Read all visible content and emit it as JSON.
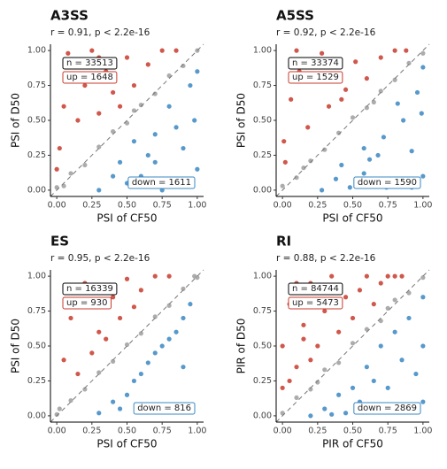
{
  "chart_data": [
    {
      "type": "scatter",
      "title": "A3SS",
      "subtitle": "r = 0.91, p < 2.2e-16",
      "xlabel": "PSI of CF50",
      "ylabel": "PSI of D50",
      "xlim": [
        -0.045,
        1.045
      ],
      "ylim": [
        -0.045,
        1.045
      ],
      "xticks": [
        {
          "value": 0,
          "label": "0.00"
        },
        {
          "value": 0.25,
          "label": "0.25"
        },
        {
          "value": 0.5,
          "label": "0.50"
        },
        {
          "value": 0.75,
          "label": "0.75"
        },
        {
          "value": 1,
          "label": "1.00"
        }
      ],
      "yticks": [
        {
          "value": 0,
          "label": "0.00"
        },
        {
          "value": 0.25,
          "label": "0.25"
        },
        {
          "value": 0.5,
          "label": "0.50"
        },
        {
          "value": 0.75,
          "label": "0.75"
        },
        {
          "value": 1,
          "label": "1.00"
        }
      ],
      "annotations": {
        "n": "n = 33513",
        "up": "up = 1648",
        "down": "down = 1611"
      },
      "series": [
        {
          "color": "#c8392b",
          "x": [
            0.02,
            0.05,
            0.1,
            0.15,
            0.2,
            0.25,
            0.3,
            0.35,
            0.4,
            0.5,
            0.55,
            0.65,
            0.75,
            0.85,
            0,
            0.08,
            0.3,
            0.45
          ],
          "y": [
            0.3,
            0.6,
            0.9,
            0.5,
            0.75,
            1,
            0.55,
            0.85,
            0.7,
            0.95,
            0.75,
            0.9,
            1,
            1,
            0.15,
            0.98,
            0.95,
            0.6
          ]
        },
        {
          "color": "#3a87c2",
          "x": [
            0.3,
            0.45,
            0.6,
            0.7,
            0.8,
            0.9,
            0.95,
            1,
            0.5,
            0.65,
            0.85,
            0.75,
            0.98,
            0.4,
            0.9,
            1,
            0.55,
            0.7
          ],
          "y": [
            0,
            0.2,
            0.1,
            0.4,
            0.6,
            0.3,
            0.75,
            0.85,
            0.05,
            0.25,
            0.45,
            0,
            0.5,
            0.1,
            0.05,
            0.15,
            0.35,
            0.2
          ]
        },
        {
          "color": "#9e9e9e",
          "x": [
            0,
            0.1,
            0.2,
            0.3,
            0.4,
            0.5,
            0.6,
            0.7,
            0.8,
            0.9,
            1,
            0.05,
            0.55
          ],
          "y": [
            0.02,
            0.12,
            0.18,
            0.31,
            0.42,
            0.48,
            0.61,
            0.69,
            0.82,
            0.89,
            1,
            0.03,
            0.57
          ]
        }
      ]
    },
    {
      "type": "scatter",
      "title": "A5SS",
      "subtitle": "r = 0.92, p < 2.2e-16",
      "xlabel": "PSI of CF50",
      "ylabel": "PSI of D50",
      "xlim": [
        -0.045,
        1.045
      ],
      "ylim": [
        -0.045,
        1.045
      ],
      "xticks": [
        {
          "value": 0,
          "label": "0.00"
        },
        {
          "value": 0.25,
          "label": "0.25"
        },
        {
          "value": 0.5,
          "label": "0.50"
        },
        {
          "value": 0.75,
          "label": "0.75"
        },
        {
          "value": 1,
          "label": "1.00"
        }
      ],
      "yticks": [
        {
          "value": 0,
          "label": "0.00"
        },
        {
          "value": 0.25,
          "label": "0.25"
        },
        {
          "value": 0.5,
          "label": "0.50"
        },
        {
          "value": 0.75,
          "label": "0.75"
        },
        {
          "value": 1,
          "label": "1.00"
        }
      ],
      "annotations": {
        "n": "n = 33374",
        "up": "up = 1529",
        "down": "down = 1590"
      },
      "series": [
        {
          "color": "#c8392b",
          "x": [
            0.01,
            0.06,
            0.12,
            0.18,
            0.22,
            0.28,
            0.33,
            0.38,
            0.45,
            0.52,
            0.6,
            0.7,
            0.8,
            0.88,
            0.02,
            0.1,
            0.25,
            0.42
          ],
          "y": [
            0.35,
            0.65,
            0.85,
            0.45,
            0.8,
            0.98,
            0.6,
            0.9,
            0.72,
            0.92,
            0.8,
            0.95,
            1,
            1,
            0.2,
            1,
            0.9,
            0.65
          ]
        },
        {
          "color": "#3a87c2",
          "x": [
            0.28,
            0.42,
            0.58,
            0.72,
            0.82,
            0.92,
            0.96,
            1,
            0.48,
            0.62,
            0.86,
            0.74,
            0.99,
            0.38,
            0.92,
            1,
            0.58,
            0.68
          ],
          "y": [
            0,
            0.18,
            0.12,
            0.38,
            0.62,
            0.28,
            0.7,
            0.88,
            0.02,
            0.22,
            0.5,
            0.02,
            0.55,
            0.08,
            0.02,
            0.1,
            0.3,
            0.25
          ]
        },
        {
          "color": "#9e9e9e",
          "x": [
            0,
            0.1,
            0.2,
            0.3,
            0.4,
            0.5,
            0.6,
            0.7,
            0.8,
            0.9,
            1,
            0.15,
            0.65
          ],
          "y": [
            0.03,
            0.09,
            0.21,
            0.29,
            0.41,
            0.52,
            0.59,
            0.71,
            0.79,
            0.91,
            0.98,
            0.16,
            0.63
          ]
        }
      ]
    },
    {
      "type": "scatter",
      "title": "ES",
      "subtitle": "r = 0.95, p < 2.2e-16",
      "xlabel": "PSI of CF50",
      "ylabel": "PSI of D50",
      "xlim": [
        -0.045,
        1.045
      ],
      "ylim": [
        -0.045,
        1.045
      ],
      "xticks": [
        {
          "value": 0,
          "label": "0.00"
        },
        {
          "value": 0.25,
          "label": "0.25"
        },
        {
          "value": 0.5,
          "label": "0.50"
        },
        {
          "value": 0.75,
          "label": "0.75"
        },
        {
          "value": 1,
          "label": "1.00"
        }
      ],
      "yticks": [
        {
          "value": 0,
          "label": "0.00"
        },
        {
          "value": 0.25,
          "label": "0.25"
        },
        {
          "value": 0.5,
          "label": "0.50"
        },
        {
          "value": 0.75,
          "label": "0.75"
        },
        {
          "value": 1,
          "label": "1.00"
        }
      ],
      "annotations": {
        "n": "n = 16339",
        "up": "up = 930",
        "down": "down = 816"
      },
      "series": [
        {
          "color": "#c8392b",
          "x": [
            0.05,
            0.1,
            0.2,
            0.3,
            0.4,
            0.5,
            0.6,
            0.7,
            0.8,
            0.35,
            0.25,
            0.15,
            0.45,
            0.55
          ],
          "y": [
            0.4,
            0.7,
            0.95,
            0.6,
            0.85,
            0.98,
            0.9,
            1,
            1,
            0.55,
            0.45,
            0.3,
            0.7,
            0.78
          ]
        },
        {
          "color": "#3a87c2",
          "x": [
            0.3,
            0.4,
            0.5,
            0.6,
            0.7,
            0.8,
            0.9,
            0.95,
            0.55,
            0.65,
            0.85,
            0.75,
            0.45,
            0.9
          ],
          "y": [
            0.02,
            0.1,
            0.15,
            0.3,
            0.45,
            0.55,
            0.7,
            0.8,
            0.25,
            0.38,
            0.6,
            0.5,
            0.05,
            0.35
          ]
        },
        {
          "color": "#9e9e9e",
          "x": [
            0,
            0.1,
            0.2,
            0.3,
            0.4,
            0.5,
            0.6,
            0.7,
            0.8,
            0.9,
            1,
            0.02,
            0.98
          ],
          "y": [
            0.01,
            0.11,
            0.19,
            0.31,
            0.39,
            0.51,
            0.59,
            0.71,
            0.79,
            0.91,
            0.99,
            0.05,
            1
          ]
        }
      ]
    },
    {
      "type": "scatter",
      "title": "RI",
      "subtitle": "r = 0.88, p < 2.2e-16",
      "xlabel": "PIR of CF50",
      "ylabel": "PIR of D50",
      "xlim": [
        -0.045,
        1.045
      ],
      "ylim": [
        -0.045,
        1.045
      ],
      "xticks": [
        {
          "value": 0,
          "label": "0.00"
        },
        {
          "value": 0.25,
          "label": "0.25"
        },
        {
          "value": 0.5,
          "label": "0.50"
        },
        {
          "value": 0.75,
          "label": "0.75"
        },
        {
          "value": 1,
          "label": "1.00"
        }
      ],
      "yticks": [
        {
          "value": 0,
          "label": "0.00"
        },
        {
          "value": 0.25,
          "label": "0.25"
        },
        {
          "value": 0.5,
          "label": "0.50"
        },
        {
          "value": 0.75,
          "label": "0.75"
        },
        {
          "value": 1,
          "label": "1.00"
        }
      ],
      "annotations": {
        "n": "n = 84744",
        "up": "up = 5473",
        "down": "down = 2869"
      },
      "series": [
        {
          "color": "#c8392b",
          "x": [
            0,
            0,
            0.05,
            0.1,
            0.15,
            0.2,
            0.25,
            0.3,
            0.35,
            0.4,
            0.45,
            0.5,
            0.55,
            0.6,
            0.65,
            0.7,
            0.75,
            0.8,
            0.85,
            0.05,
            0.1,
            0.2,
            0.3,
            0.15
          ],
          "y": [
            0.2,
            0.5,
            0.8,
            0.35,
            0.65,
            0.95,
            0.5,
            0.75,
            1,
            0.6,
            0.85,
            0.7,
            0.9,
            1,
            0.8,
            0.95,
            1,
            1,
            1,
            0.25,
            0.95,
            0.4,
            0.9,
            0.55
          ]
        },
        {
          "color": "#3a87c2",
          "x": [
            0.2,
            0.3,
            0.4,
            0.5,
            0.6,
            0.7,
            0.8,
            0.9,
            1,
            1,
            1,
            0.45,
            0.55,
            0.65,
            0.75,
            0.85,
            0.95,
            0.35
          ],
          "y": [
            0,
            0.05,
            0.15,
            0.2,
            0.35,
            0.5,
            0.6,
            0.7,
            0.1,
            0.5,
            0.85,
            0.02,
            0.1,
            0.25,
            0.2,
            0.4,
            0.3,
            0.01
          ]
        },
        {
          "color": "#9e9e9e",
          "x": [
            0,
            0.1,
            0.2,
            0.3,
            0.4,
            0.5,
            0.6,
            0.7,
            0.8,
            0.9,
            1,
            0.25,
            0.75
          ],
          "y": [
            0.02,
            0.13,
            0.19,
            0.33,
            0.38,
            0.52,
            0.62,
            0.68,
            0.83,
            0.88,
            0.99,
            0.24,
            0.77
          ]
        }
      ]
    }
  ]
}
